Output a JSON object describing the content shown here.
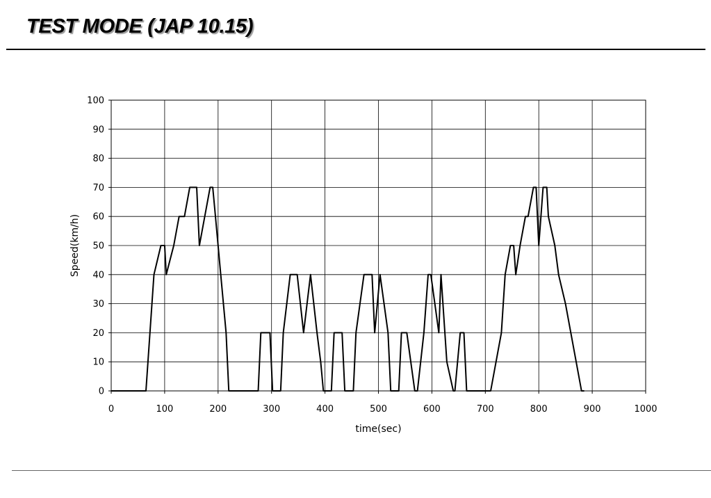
{
  "slide": {
    "title": "TEST MODE (JAP 10.15)"
  },
  "chart_data": {
    "type": "line",
    "title": "",
    "xlabel": "time(sec)",
    "ylabel": "Speed(km/h)",
    "xlim": [
      0,
      1000
    ],
    "ylim": [
      0,
      100
    ],
    "x_ticks": [
      0,
      100,
      200,
      300,
      400,
      500,
      600,
      700,
      800,
      900,
      1000
    ],
    "y_ticks": [
      0,
      10,
      20,
      30,
      40,
      50,
      60,
      70,
      80,
      90,
      100
    ],
    "grid": true,
    "legend": "none",
    "line_color": "#000000",
    "series": [
      {
        "x": [
          0,
          65,
          80,
          93,
          100,
          103,
          110,
          117,
          127,
          137,
          147,
          160,
          165,
          185,
          190,
          195,
          200,
          205,
          215,
          220,
          275,
          280,
          297,
          302,
          317,
          322,
          335,
          348,
          360,
          373,
          385,
          392,
          397,
          412,
          417,
          432,
          437,
          453,
          458,
          473,
          488,
          493,
          503,
          518,
          523,
          538,
          543,
          553,
          568,
          573,
          585,
          593,
          598,
          613,
          617,
          628,
          640,
          643,
          653,
          660,
          665,
          710,
          730,
          737,
          747,
          753,
          757,
          765,
          775,
          780,
          790,
          795,
          800,
          808,
          815,
          818,
          830,
          837,
          850,
          860,
          870,
          880,
          885
        ],
        "y": [
          0,
          0,
          40,
          50,
          50,
          40,
          45,
          50,
          60,
          60,
          70,
          70,
          50,
          70,
          70,
          60,
          50,
          40,
          20,
          0,
          0,
          20,
          20,
          0,
          0,
          20,
          40,
          40,
          20,
          40,
          20,
          10,
          0,
          0,
          20,
          20,
          0,
          0,
          20,
          40,
          40,
          20,
          40,
          20,
          0,
          0,
          20,
          20,
          0,
          0,
          20,
          40,
          40,
          20,
          40,
          10,
          0,
          0,
          20,
          20,
          0,
          0,
          20,
          40,
          50,
          50,
          40,
          50,
          60,
          60,
          70,
          70,
          50,
          70,
          70,
          60,
          50,
          40,
          30,
          20,
          10,
          0,
          0
        ]
      }
    ]
  }
}
